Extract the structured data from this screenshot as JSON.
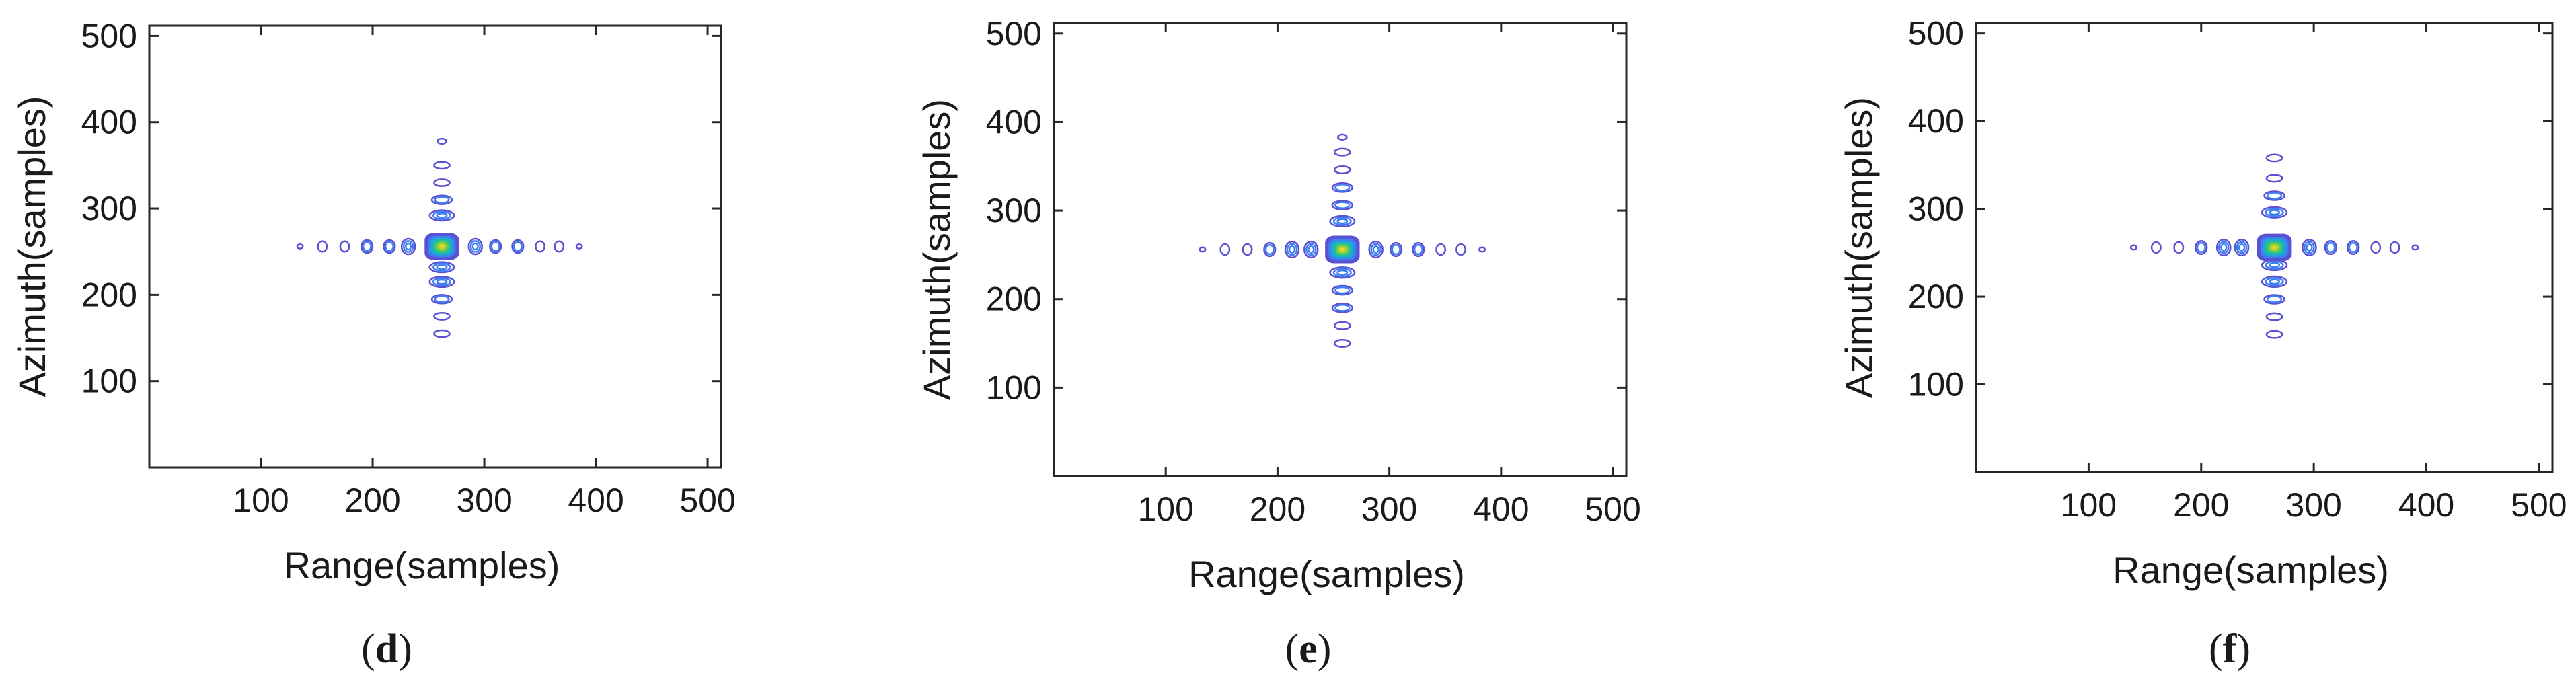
{
  "chart_data": [
    {
      "type": "contour",
      "panel_label": "d",
      "xlabel": "Range(samples)",
      "ylabel": "Azimuth(samples)",
      "xlim": [
        0,
        512
      ],
      "ylim": [
        0,
        512
      ],
      "xticks": [
        100,
        200,
        300,
        400,
        500
      ],
      "yticks": [
        100,
        200,
        300,
        400,
        500
      ],
      "center": [
        262,
        256
      ],
      "range_sidelobes": [
        135,
        155,
        175,
        195,
        215,
        232,
        292,
        310,
        330,
        350,
        367,
        385
      ],
      "azimuth_sidelobes": [
        155,
        175,
        195,
        215,
        232,
        292,
        310,
        330,
        350,
        378
      ]
    },
    {
      "type": "contour",
      "panel_label": "e",
      "xlabel": "Range(samples)",
      "ylabel": "Azimuth(samples)",
      "xlim": [
        0,
        512
      ],
      "ylim": [
        0,
        512
      ],
      "xticks": [
        100,
        200,
        300,
        400,
        500
      ],
      "yticks": [
        100,
        200,
        300,
        400,
        500
      ],
      "center": [
        258,
        256
      ],
      "range_sidelobes": [
        133,
        153,
        173,
        193,
        213,
        230,
        288,
        306,
        326,
        346,
        364,
        383
      ],
      "azimuth_sidelobes": [
        150,
        170,
        190,
        210,
        230,
        288,
        306,
        326,
        346,
        366,
        383
      ]
    },
    {
      "type": "contour",
      "panel_label": "f",
      "xlabel": "Range(samples)",
      "ylabel": "Azimuth(samples)",
      "xlim": [
        0,
        512
      ],
      "ylim": [
        0,
        512
      ],
      "xticks": [
        100,
        200,
        300,
        400,
        500
      ],
      "yticks": [
        100,
        200,
        300,
        400,
        500
      ],
      "center": [
        265,
        256
      ],
      "range_sidelobes": [
        140,
        160,
        180,
        200,
        220,
        236,
        296,
        315,
        335,
        355,
        372,
        390
      ],
      "azimuth_sidelobes": [
        157,
        177,
        197,
        217,
        236,
        296,
        315,
        335,
        358
      ]
    }
  ]
}
